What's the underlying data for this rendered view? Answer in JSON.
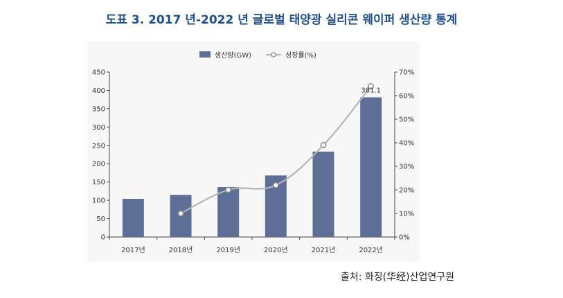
{
  "title": "도표 3. 2017 년-2022 년 글로벌 태양광 실리콘 웨이퍼 생산량 통계",
  "source": "출처: 화징(华经)산업연구원",
  "colors": {
    "bar": "#5d6f96",
    "line": "#b5b5b5",
    "marker_edge": "#8a8a8a",
    "title": "#1f4e8c"
  },
  "chart_data": {
    "type": "bar",
    "categories": [
      "2017년",
      "2018년",
      "2019년",
      "2020년",
      "2021년",
      "2022년"
    ],
    "series": [
      {
        "name": "생산량(GW)",
        "type": "bar",
        "axis": "left",
        "values": [
          104,
          115,
          136,
          168,
          233,
          381.1
        ]
      },
      {
        "name": "성장률(%)",
        "type": "line",
        "axis": "right",
        "values": [
          null,
          10,
          20,
          22,
          39,
          64
        ]
      }
    ],
    "data_labels": [
      {
        "category": "2022년",
        "text": "381.1"
      }
    ],
    "y_left": {
      "lim": [
        0,
        450
      ],
      "ticks": [
        "0",
        "50",
        "100",
        "150",
        "200",
        "250",
        "300",
        "350",
        "400",
        "450"
      ]
    },
    "y_right": {
      "lim": [
        0,
        70
      ],
      "ticks": [
        "0%",
        "10%",
        "20%",
        "30%",
        "40%",
        "50%",
        "60%",
        "70%"
      ]
    },
    "legend_position": "top"
  }
}
